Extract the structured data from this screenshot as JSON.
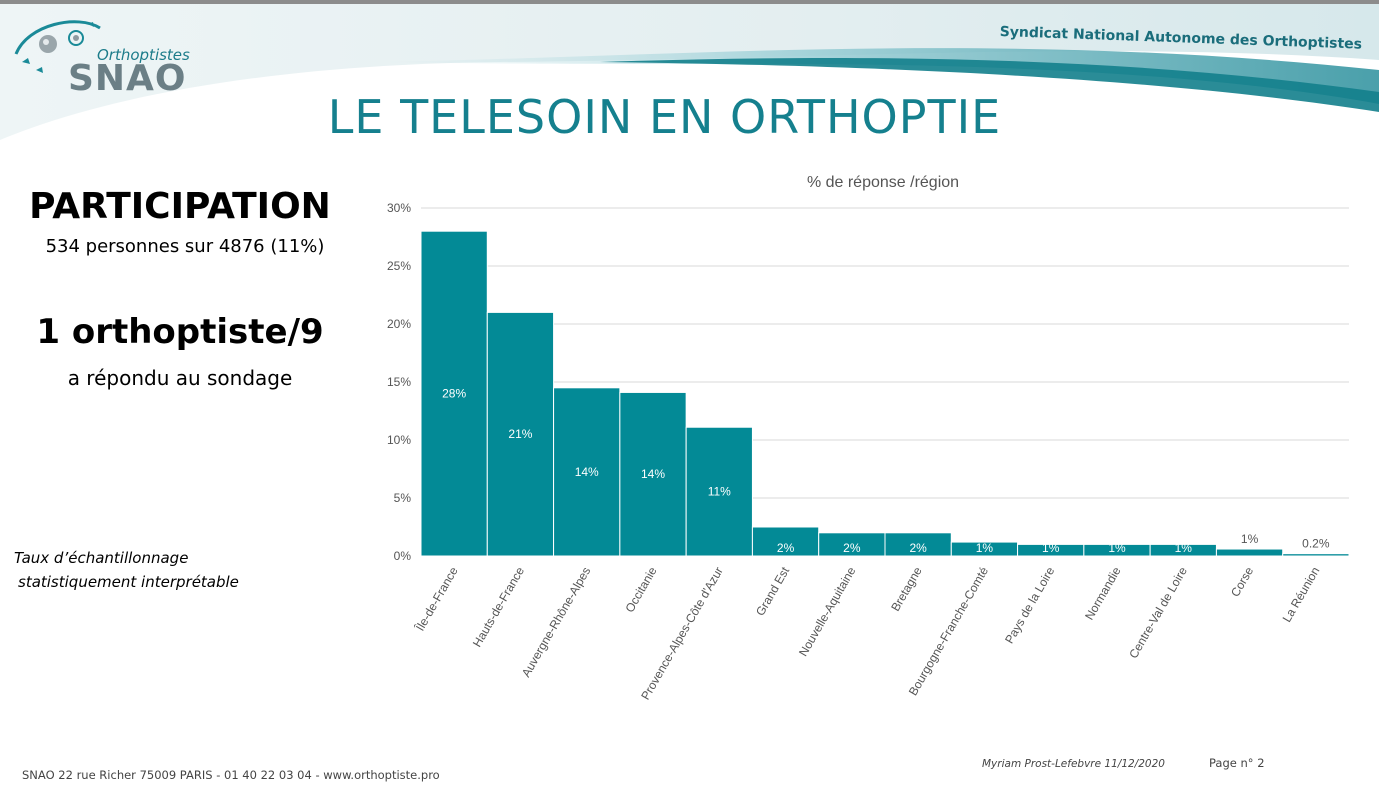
{
  "header": {
    "logo_subtitle": "Orthoptistes",
    "logo_name": "SNAO",
    "organization": "Syndicat National Autonome des Orthoptistes",
    "accent_color": "#15808e"
  },
  "slide_title": "LE TELESOIN EN ORTHOPTIE",
  "left_panel": {
    "participation_title": "PARTICIPATION",
    "participation_detail": "534 personnes sur 4876 (11%)",
    "ratio_title": "1 orthoptiste/9",
    "ratio_detail": "a répondu au sondage",
    "note_line1": "Taux d’échantillonnage",
    "note_line2": "statistiquement interprétable"
  },
  "chart_data": {
    "type": "bar",
    "title": "% de réponse /région",
    "categories": [
      "Île-de-France",
      "Hauts-de-France",
      "Auvergne-Rhône-Alpes",
      "Occitanie",
      "Provence-Alpes-Côte d'Azur",
      "Grand Est",
      "Nouvelle-Aquitaine",
      "Bretagne",
      "Bourgogne-Franche-Comté",
      "Pays de la Loire",
      "Normandie",
      "Centre-Val de Loire",
      "Corse",
      "La Réunion"
    ],
    "values": [
      28,
      21,
      14.5,
      14.1,
      11.1,
      2.5,
      2,
      2,
      1.2,
      1,
      1,
      1,
      0.6,
      0.2
    ],
    "data_labels": [
      "28%",
      "21%",
      "14%",
      "14%",
      "11%",
      "2%",
      "2%",
      "2%",
      "1%",
      "1%",
      "1%",
      "1%",
      "1%",
      "0.2%"
    ],
    "ylim": [
      0,
      30
    ],
    "yticks": [
      0,
      5,
      10,
      15,
      20,
      25,
      30
    ],
    "ytick_labels": [
      "0%",
      "5%",
      "10%",
      "15%",
      "20%",
      "25%",
      "30%"
    ],
    "grid": true,
    "bar_color": "#038a96"
  },
  "footer": {
    "address": "SNAO 22 rue Richer 75009 PARIS   -  01 40 22 03 04  -  www.orthoptiste.pro",
    "author": "Myriam Prost-Lefebvre 11/12/2020",
    "page": "Page n° 2"
  }
}
